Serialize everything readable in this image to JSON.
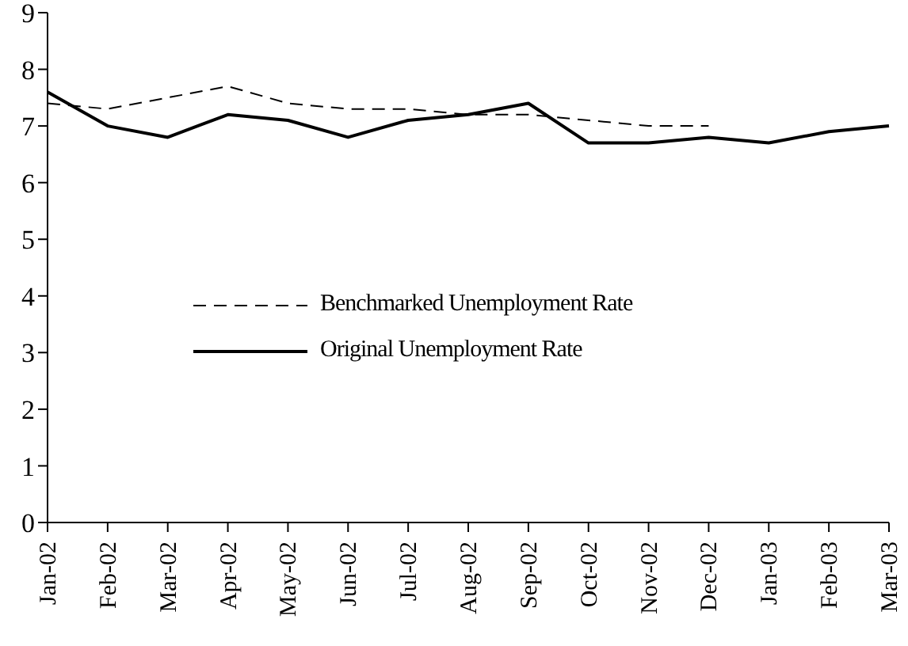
{
  "chart_data": {
    "type": "line",
    "categories": [
      "Jan-02",
      "Feb-02",
      "Mar-02",
      "Apr-02",
      "May-02",
      "Jun-02",
      "Jul-02",
      "Aug-02",
      "Sep-02",
      "Oct-02",
      "Nov-02",
      "Dec-02",
      "Jan-03",
      "Feb-03",
      "Mar-03"
    ],
    "series": [
      {
        "name": "Benchmarked Unemployment Rate",
        "color": "#000000",
        "line_style": "dashed",
        "values": [
          7.4,
          7.3,
          7.5,
          7.7,
          7.4,
          7.3,
          7.3,
          7.2,
          7.2,
          7.1,
          7.0,
          7.0,
          null,
          null,
          null
        ]
      },
      {
        "name": "Original Unemployment Rate",
        "color": "#000000",
        "line_style": "solid",
        "values": [
          7.6,
          7.0,
          6.8,
          7.2,
          7.1,
          6.8,
          7.1,
          7.2,
          7.4,
          6.7,
          6.7,
          6.8,
          6.7,
          6.9,
          7.0
        ]
      }
    ],
    "ylim": [
      0,
      9
    ],
    "yticks": [
      0,
      1,
      2,
      3,
      4,
      5,
      6,
      7,
      8,
      9
    ],
    "grid": false,
    "legend": "center",
    "marker": "none"
  }
}
